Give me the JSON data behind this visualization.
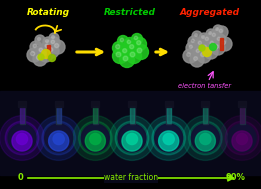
{
  "background_color": "#000000",
  "title_rotating": "Rotating",
  "title_restricted": "Restricted",
  "title_aggregated": "Aggregated",
  "label_electron": "electron tansfer",
  "label_water_left": "0",
  "label_water_right": "90%",
  "label_water_middle": "water fraction",
  "title_rotating_color": "#ffff00",
  "title_restricted_color": "#00cc00",
  "title_aggregated_color": "#ff2200",
  "label_electron_color": "#ff55ff",
  "label_water_color": "#88ee00",
  "arrow_color": "#ffdd00",
  "molecule_gray": "#909090",
  "molecule_green": "#22cc22",
  "molecule_yellow": "#cccc00",
  "flask_glow_colors": [
    "#6600cc",
    "#2244cc",
    "#00aa44",
    "#00cc99",
    "#00ccaa",
    "#00aa77",
    "#550066"
  ],
  "flask_bg_color": "#080818"
}
